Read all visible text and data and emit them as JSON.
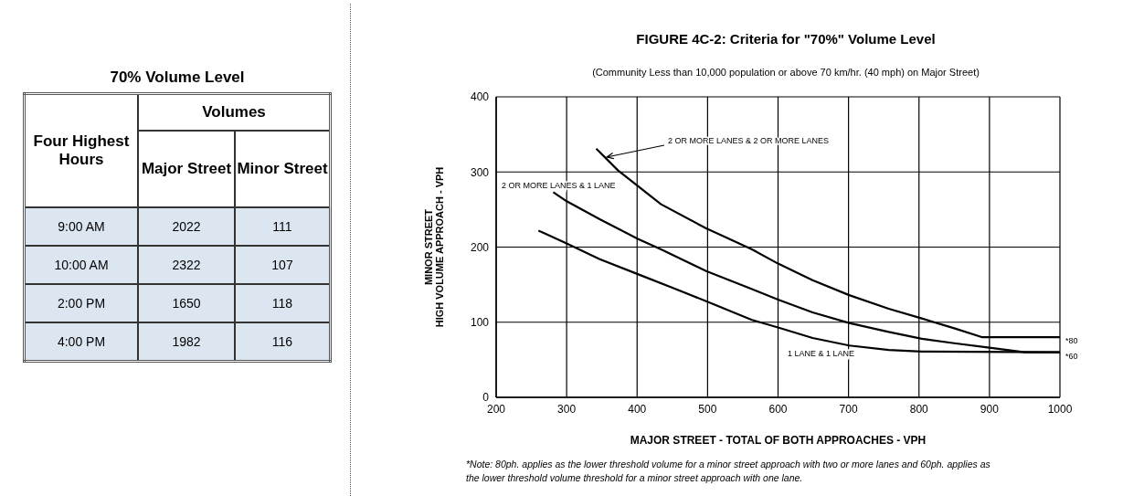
{
  "chart_data": [
    {
      "type": "other",
      "title": "70% Volume Level",
      "annotations": [
        "Four Highest Hours",
        "Volumes",
        "Major Street",
        "Minor Street",
        "9:00 AM",
        "2022",
        "111",
        "10:00 AM",
        "2322",
        "107",
        "2:00 PM",
        "1650",
        "118",
        "4:00 PM",
        "1982",
        "116"
      ]
    },
    {
      "type": "line",
      "title": "FIGURE 4C-2: Criteria for \"70%\" Volume Level",
      "subtitle": "(Community Less than 10,000 population or above 70 km/hr. (40 mph)  on Major  Street)",
      "xlabel": "MAJOR STREET - TOTAL OF BOTH APPROACHES - VPH",
      "ylabel": "MINOR STREET\nHIGH VOLUME APPROACH - VPH",
      "xlim": [
        200,
        1000
      ],
      "xticks": [
        200,
        300,
        400,
        500,
        600,
        700,
        800,
        900,
        1000
      ],
      "ylim": [
        0,
        400
      ],
      "yticks": [
        0,
        100,
        200,
        300,
        400
      ],
      "grid": true,
      "legend": false,
      "marker": "none",
      "line_style": "solid",
      "series": [
        {
          "name": "2 OR MORE LANES & 2 OR MORE LANES",
          "color": "#000000",
          "x": [
            342,
            373,
            434,
            498,
            563,
            600,
            649,
            701,
            757,
            804,
            850,
            890,
            1000
          ],
          "values": [
            331,
            302,
            257,
            225,
            197,
            178,
            156,
            136,
            118,
            105,
            92,
            80,
            80
          ]
        },
        {
          "name": "2 OR MORE LANES & 1 LANE",
          "color": "#000000",
          "x": [
            281,
            300,
            347,
            401,
            434,
            498,
            563,
            600,
            649,
            701,
            757,
            804,
            850,
            900,
            950,
            1000
          ],
          "values": [
            273,
            261,
            237,
            211,
            197,
            168,
            144,
            130,
            113,
            99,
            87,
            78,
            72,
            66,
            60,
            60
          ]
        },
        {
          "name": "1 LANE & 1 LANE",
          "color": "#000000",
          "x": [
            260,
            300,
            347,
            401,
            455,
            498,
            563,
            600,
            649,
            701,
            757,
            804,
            1000
          ],
          "values": [
            222,
            205,
            184,
            164,
            144,
            128,
            103,
            93,
            79,
            69,
            63,
            61,
            60
          ]
        }
      ],
      "annotations": [
        {
          "text": "*80",
          "x": 1000,
          "y": 80
        },
        {
          "text": "*60",
          "x": 1000,
          "y": 60
        },
        "*Note:    80ph. applies as the lower threshold volume for a minor street approach with two or more lanes and 60ph. applies as the lower threshold volume threshold for a minor street approach with one lane."
      ]
    }
  ]
}
